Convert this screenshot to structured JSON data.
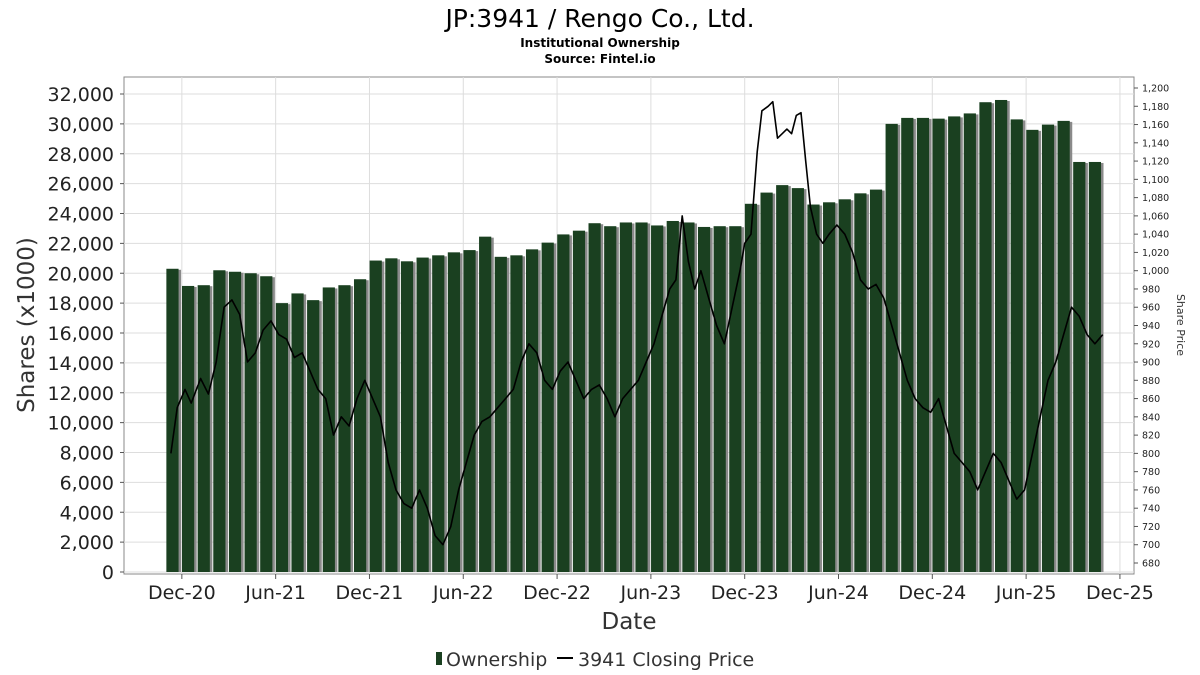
{
  "chart_data": {
    "type": "bar",
    "title": "JP:3941 / Rengo Co., Ltd.",
    "subtitle": "Institutional Ownership",
    "source": "Source: Fintel.io",
    "xlabel": "Date",
    "ylabel": "Shares (x1000)",
    "y2label": "Share Price",
    "ylim": [
      0,
      32000
    ],
    "y2lim": [
      680,
      1200
    ],
    "yticks": [
      "0",
      "2,000",
      "4,000",
      "6,000",
      "8,000",
      "10,000",
      "12,000",
      "14,000",
      "16,000",
      "18,000",
      "20,000",
      "22,000",
      "24,000",
      "26,000",
      "28,000",
      "30,000",
      "32,000"
    ],
    "y2ticks": [
      "680",
      "700",
      "720",
      "740",
      "760",
      "780",
      "800",
      "820",
      "840",
      "860",
      "880",
      "900",
      "920",
      "940",
      "960",
      "980",
      "1,000",
      "1,020",
      "1,040",
      "1,060",
      "1,080",
      "1,100",
      "1,120",
      "1,140",
      "1,160",
      "1,180",
      "1,200"
    ],
    "xticks": [
      {
        "label": "Dec-20",
        "pos": 0.6
      },
      {
        "label": "Jun-21",
        "pos": 6.6
      },
      {
        "label": "Dec-21",
        "pos": 12.6
      },
      {
        "label": "Jun-22",
        "pos": 18.6
      },
      {
        "label": "Dec-22",
        "pos": 24.6
      },
      {
        "label": "Jun-23",
        "pos": 30.6
      },
      {
        "label": "Dec-23",
        "pos": 36.6
      },
      {
        "label": "Jun-24",
        "pos": 42.6
      },
      {
        "label": "Dec-24",
        "pos": 48.6
      },
      {
        "label": "Jun-25",
        "pos": 54.6
      },
      {
        "label": "Dec-25",
        "pos": 60.6
      }
    ],
    "x_range": [
      -3.1,
      61.5
    ],
    "series": [
      {
        "name": "Ownership",
        "color": "#1a4020",
        "values": [
          20300,
          19150,
          19200,
          20200,
          20100,
          20000,
          19800,
          18000,
          18650,
          18200,
          19050,
          19200,
          19600,
          20850,
          21000,
          20800,
          21050,
          21200,
          21400,
          21550,
          22450,
          21100,
          21200,
          21600,
          22050,
          22600,
          22850,
          23350,
          23150,
          23400,
          23400,
          23200,
          23500,
          23400,
          23100,
          23150,
          23150,
          24650,
          25400,
          25900,
          25700,
          24600,
          24750,
          24950,
          25350,
          25600,
          30000,
          30400,
          30400,
          30350,
          30500,
          30700,
          31450,
          31600,
          30300,
          29600,
          29950,
          30200,
          27450,
          27450
        ]
      },
      {
        "name": "3941 Closing Price",
        "color": "#000000",
        "points": [
          [
            -0.1,
            800
          ],
          [
            0.3,
            850
          ],
          [
            0.8,
            870
          ],
          [
            1.2,
            855
          ],
          [
            1.8,
            882
          ],
          [
            2.3,
            865
          ],
          [
            2.8,
            900
          ],
          [
            3.3,
            960
          ],
          [
            3.8,
            968
          ],
          [
            4.3,
            952
          ],
          [
            4.8,
            900
          ],
          [
            5.3,
            910
          ],
          [
            5.8,
            935
          ],
          [
            6.3,
            945
          ],
          [
            6.8,
            930
          ],
          [
            7.3,
            925
          ],
          [
            7.8,
            905
          ],
          [
            8.3,
            910
          ],
          [
            8.8,
            890
          ],
          [
            9.3,
            870
          ],
          [
            9.8,
            860
          ],
          [
            10.3,
            820
          ],
          [
            10.8,
            840
          ],
          [
            11.3,
            830
          ],
          [
            11.8,
            860
          ],
          [
            12.3,
            880
          ],
          [
            12.8,
            860
          ],
          [
            13.3,
            840
          ],
          [
            13.8,
            790
          ],
          [
            14.3,
            760
          ],
          [
            14.8,
            745
          ],
          [
            15.3,
            740
          ],
          [
            15.8,
            760
          ],
          [
            16.3,
            740
          ],
          [
            16.8,
            710
          ],
          [
            17.3,
            700
          ],
          [
            17.8,
            720
          ],
          [
            18.3,
            760
          ],
          [
            18.8,
            790
          ],
          [
            19.3,
            820
          ],
          [
            19.8,
            835
          ],
          [
            20.3,
            840
          ],
          [
            20.8,
            850
          ],
          [
            21.3,
            860
          ],
          [
            21.8,
            870
          ],
          [
            22.3,
            900
          ],
          [
            22.8,
            920
          ],
          [
            23.3,
            910
          ],
          [
            23.8,
            880
          ],
          [
            24.3,
            870
          ],
          [
            24.8,
            890
          ],
          [
            25.3,
            900
          ],
          [
            25.8,
            880
          ],
          [
            26.3,
            860
          ],
          [
            26.8,
            870
          ],
          [
            27.3,
            875
          ],
          [
            27.8,
            860
          ],
          [
            28.3,
            840
          ],
          [
            28.8,
            860
          ],
          [
            29.3,
            870
          ],
          [
            29.8,
            880
          ],
          [
            30.3,
            900
          ],
          [
            30.8,
            920
          ],
          [
            31.3,
            950
          ],
          [
            31.8,
            980
          ],
          [
            32.2,
            990
          ],
          [
            32.6,
            1060
          ],
          [
            33.0,
            1010
          ],
          [
            33.4,
            980
          ],
          [
            33.8,
            1000
          ],
          [
            34.3,
            970
          ],
          [
            34.8,
            940
          ],
          [
            35.3,
            920
          ],
          [
            35.8,
            960
          ],
          [
            36.3,
            1000
          ],
          [
            36.6,
            1030
          ],
          [
            37.0,
            1040
          ],
          [
            37.4,
            1130
          ],
          [
            37.7,
            1175
          ],
          [
            38.1,
            1180
          ],
          [
            38.4,
            1185
          ],
          [
            38.7,
            1145
          ],
          [
            39.0,
            1150
          ],
          [
            39.3,
            1155
          ],
          [
            39.6,
            1150
          ],
          [
            39.9,
            1170
          ],
          [
            40.2,
            1173
          ],
          [
            40.5,
            1120
          ],
          [
            40.8,
            1070
          ],
          [
            41.2,
            1040
          ],
          [
            41.6,
            1030
          ],
          [
            42.0,
            1040
          ],
          [
            42.5,
            1050
          ],
          [
            43.0,
            1040
          ],
          [
            43.5,
            1020
          ],
          [
            44.0,
            990
          ],
          [
            44.5,
            980
          ],
          [
            45.0,
            985
          ],
          [
            45.5,
            970
          ],
          [
            46.0,
            940
          ],
          [
            46.5,
            910
          ],
          [
            47.0,
            880
          ],
          [
            47.5,
            860
          ],
          [
            48.0,
            850
          ],
          [
            48.5,
            845
          ],
          [
            49.0,
            860
          ],
          [
            49.5,
            830
          ],
          [
            50.0,
            800
          ],
          [
            50.5,
            790
          ],
          [
            51.0,
            780
          ],
          [
            51.5,
            760
          ],
          [
            52.0,
            780
          ],
          [
            52.5,
            800
          ],
          [
            53.0,
            790
          ],
          [
            53.5,
            770
          ],
          [
            54.0,
            750
          ],
          [
            54.5,
            760
          ],
          [
            55.0,
            800
          ],
          [
            55.5,
            840
          ],
          [
            56.0,
            880
          ],
          [
            56.5,
            900
          ],
          [
            57.0,
            930
          ],
          [
            57.5,
            960
          ],
          [
            58.0,
            950
          ],
          [
            58.5,
            930
          ],
          [
            59.0,
            920
          ],
          [
            59.5,
            930
          ]
        ]
      }
    ],
    "legend": {
      "ownership_label": "Ownership",
      "price_label": "3941 Closing Price",
      "placement": "bottom-center"
    },
    "grid": true
  }
}
